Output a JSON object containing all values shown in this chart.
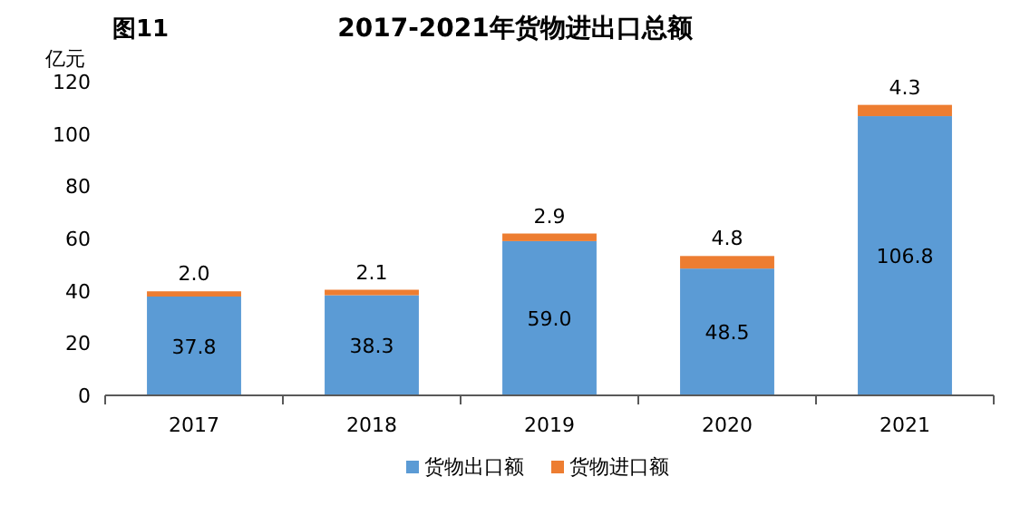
{
  "chart_data": {
    "type": "bar",
    "title": "2017-2021年货物进出口总额",
    "annotations": [
      "图11"
    ],
    "ylabel": "亿元",
    "categories": [
      "2017",
      "2018",
      "2019",
      "2020",
      "2021"
    ],
    "stacked": true,
    "ylim": [
      0,
      120
    ],
    "yticks": [
      0,
      20,
      40,
      60,
      80,
      100,
      120
    ],
    "grid": false,
    "legend": "bottom",
    "series": [
      {
        "name": "货物出口额",
        "color": "#5b9bd5",
        "values": [
          37.8,
          38.3,
          59.0,
          48.5,
          106.8
        ],
        "value_labels": [
          "37.8",
          "38.3",
          "59.0",
          "48.5",
          "106.8"
        ]
      },
      {
        "name": "货物进口额",
        "color": "#ed7d31",
        "values": [
          2.0,
          2.1,
          2.9,
          4.8,
          4.3
        ],
        "value_labels": [
          "2.0",
          "2.1",
          "2.9",
          "4.8",
          "4.3"
        ]
      }
    ]
  }
}
